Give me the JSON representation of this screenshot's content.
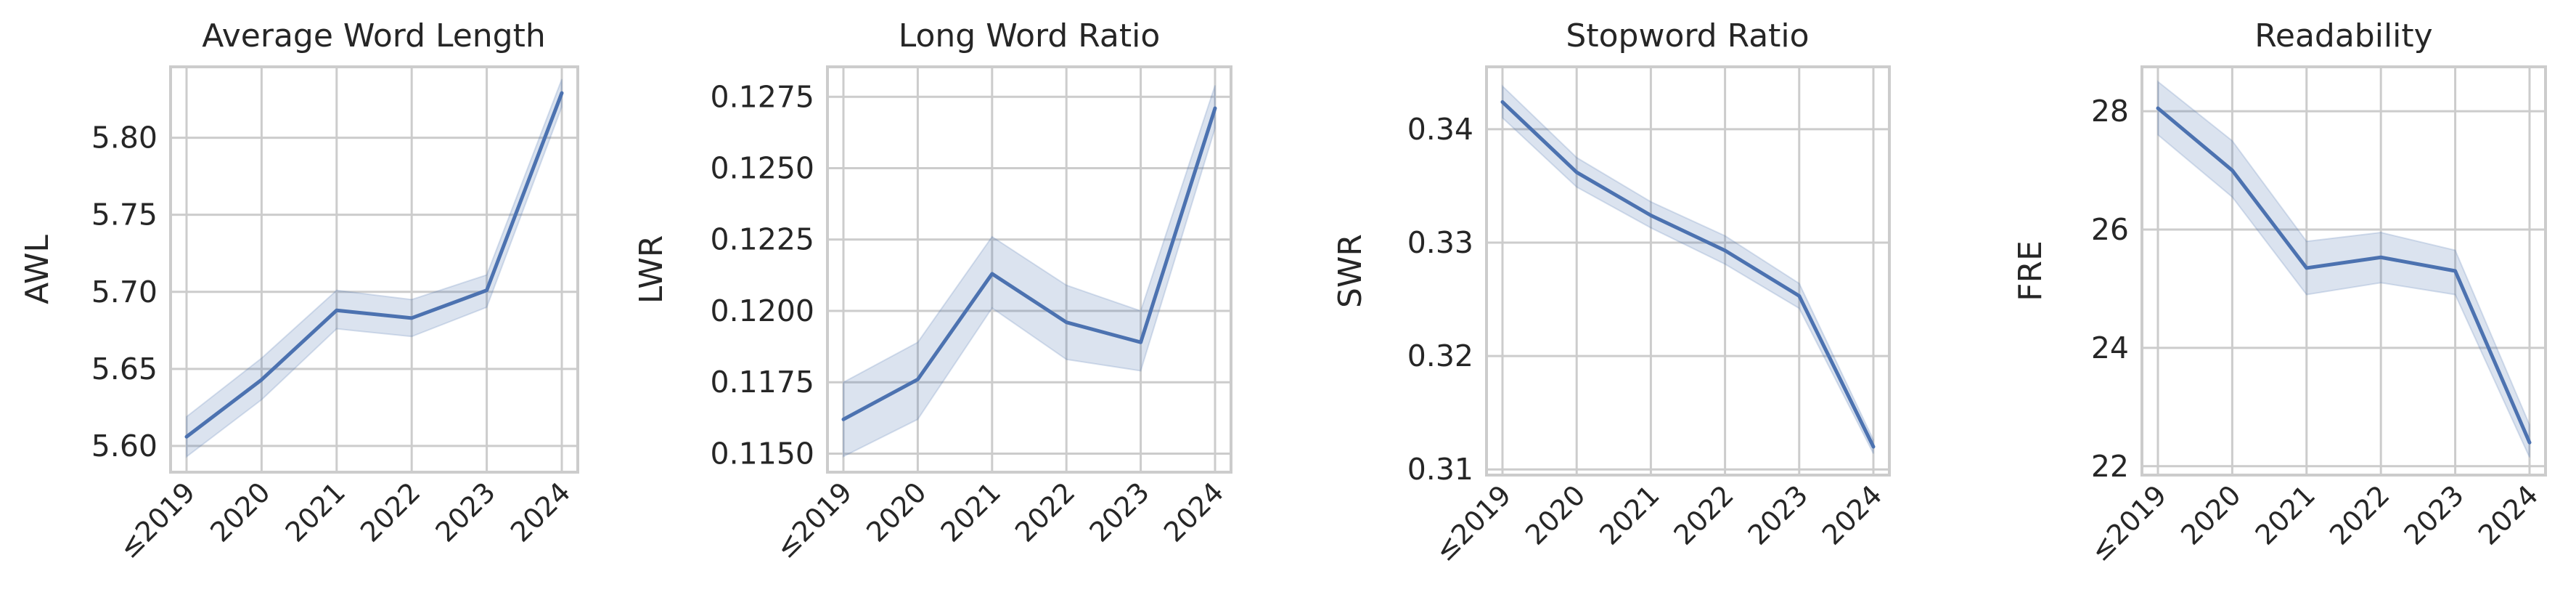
{
  "chart_data": [
    {
      "type": "line",
      "title": "Average Word Length",
      "ylabel": "AWL",
      "categories": [
        "≤2019",
        "2020",
        "2021",
        "2022",
        "2023",
        "2024"
      ],
      "ylim": [
        5.583,
        5.846
      ],
      "yticks": [
        5.6,
        5.65,
        5.7,
        5.75,
        5.8
      ],
      "ytick_labels": [
        "5.60",
        "5.65",
        "5.70",
        "5.75",
        "5.80"
      ],
      "series": [
        {
          "values": [
            5.606,
            5.643,
            5.688,
            5.683,
            5.701,
            5.829
          ],
          "ci_low": [
            5.593,
            5.63,
            5.676,
            5.671,
            5.69,
            5.82
          ],
          "ci_high": [
            5.619,
            5.657,
            5.701,
            5.695,
            5.711,
            5.838
          ],
          "color": "#4c72b0"
        }
      ],
      "grid": true
    },
    {
      "type": "line",
      "title": "Long Word Ratio",
      "ylabel": "LWR",
      "categories": [
        "≤2019",
        "2020",
        "2021",
        "2022",
        "2023",
        "2024"
      ],
      "ylim": [
        0.11435,
        0.12855
      ],
      "yticks": [
        0.115,
        0.1175,
        0.12,
        0.1225,
        0.125,
        0.1275
      ],
      "ytick_labels": [
        "0.1150",
        "0.1175",
        "0.1200",
        "0.1225",
        "0.1250",
        "0.1275"
      ],
      "series": [
        {
          "values": [
            0.1162,
            0.1176,
            0.1213,
            0.1196,
            0.1189,
            0.1271
          ],
          "ci_low": [
            0.1149,
            0.1162,
            0.1201,
            0.1183,
            0.1179,
            0.1264
          ],
          "ci_high": [
            0.1175,
            0.1189,
            0.1226,
            0.1209,
            0.12,
            0.1279
          ],
          "color": "#4c72b0"
        }
      ],
      "grid": true
    },
    {
      "type": "line",
      "title": "Stopword Ratio",
      "ylabel": "SWR",
      "categories": [
        "≤2019",
        "2020",
        "2021",
        "2022",
        "2023",
        "2024"
      ],
      "ylim": [
        0.3095,
        0.3455
      ],
      "yticks": [
        0.31,
        0.32,
        0.33,
        0.34
      ],
      "ytick_labels": [
        "0.31",
        "0.32",
        "0.33",
        "0.34"
      ],
      "series": [
        {
          "values": [
            0.3424,
            0.3362,
            0.3324,
            0.3293,
            0.3253,
            0.312
          ],
          "ci_low": [
            0.341,
            0.3349,
            0.3313,
            0.3281,
            0.3242,
            0.3114
          ],
          "ci_high": [
            0.3438,
            0.3375,
            0.3336,
            0.3306,
            0.3264,
            0.3126
          ],
          "color": "#4c72b0"
        }
      ],
      "grid": true
    },
    {
      "type": "line",
      "title": "Readability",
      "ylabel": "FRE",
      "categories": [
        "≤2019",
        "2020",
        "2021",
        "2022",
        "2023",
        "2024"
      ],
      "ylim": [
        21.85,
        28.75
      ],
      "yticks": [
        22,
        24,
        26,
        28
      ],
      "ytick_labels": [
        "22",
        "24",
        "26",
        "28"
      ],
      "series": [
        {
          "values": [
            28.05,
            27.0,
            25.35,
            25.53,
            25.3,
            22.4
          ],
          "ci_low": [
            27.6,
            26.55,
            24.9,
            25.1,
            24.9,
            22.15
          ],
          "ci_high": [
            28.5,
            27.5,
            25.8,
            25.95,
            25.65,
            22.7
          ],
          "color": "#4c72b0"
        }
      ],
      "grid": true
    }
  ]
}
